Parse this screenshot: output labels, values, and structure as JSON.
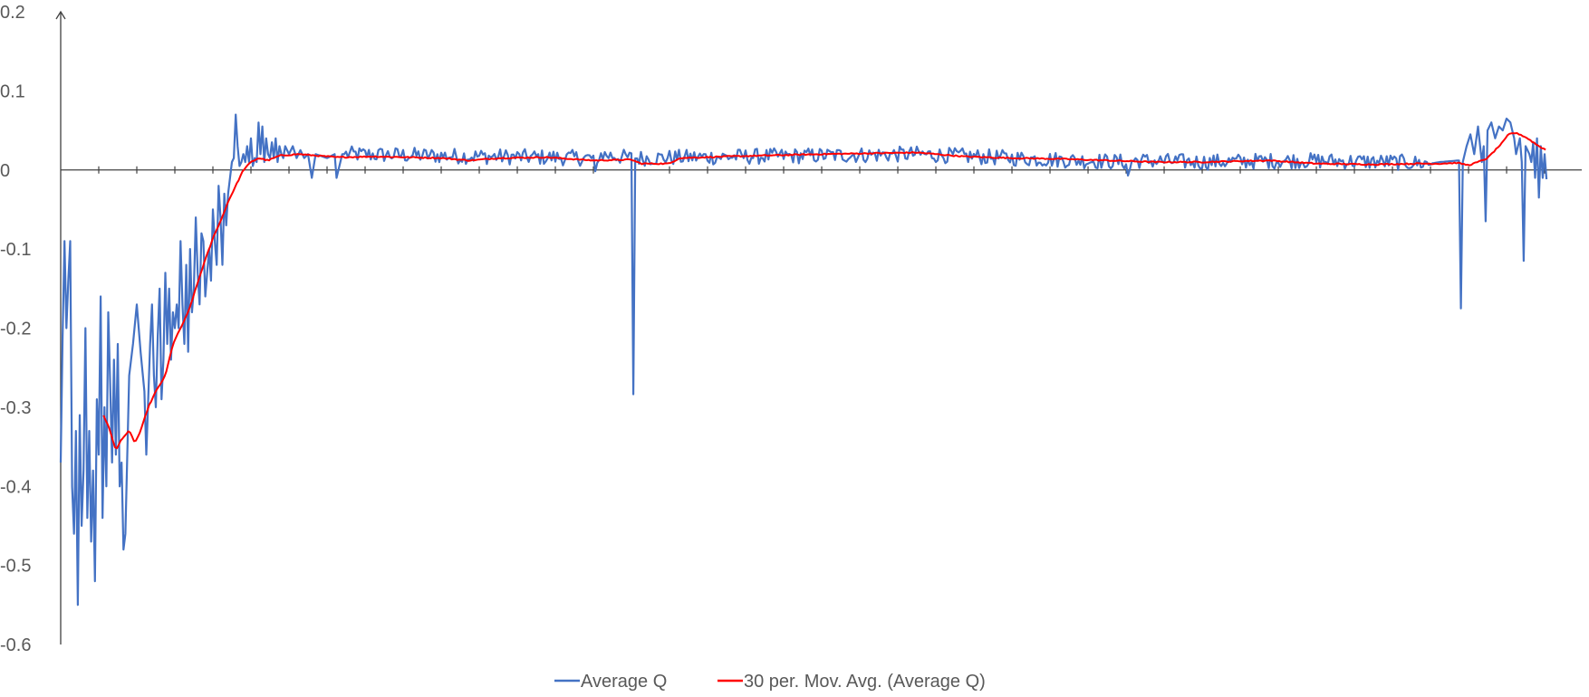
{
  "chart_data": {
    "type": "line",
    "title": "",
    "xlabel": "",
    "ylabel": "",
    "ylim": [
      -0.6,
      0.2
    ],
    "yticks": [
      0.2,
      0.1,
      0,
      -0.1,
      -0.2,
      -0.3,
      -0.4,
      -0.5,
      -0.6
    ],
    "ytick_labels": [
      "0.2",
      "0.1",
      "0",
      "-0.1",
      "-0.2",
      "-0.3",
      "-0.4",
      "-0.5",
      "-0.6"
    ],
    "x_count": 1600,
    "x_tick_interval": 40,
    "grid": false,
    "legend_position": "bottom",
    "series": [
      {
        "name": "Average Q",
        "color": "#4472C4",
        "keypoints": [
          [
            0,
            -0.37
          ],
          [
            2,
            -0.21
          ],
          [
            4,
            -0.09
          ],
          [
            6,
            -0.2
          ],
          [
            8,
            -0.14
          ],
          [
            10,
            -0.09
          ],
          [
            12,
            -0.4
          ],
          [
            14,
            -0.46
          ],
          [
            16,
            -0.33
          ],
          [
            18,
            -0.55
          ],
          [
            20,
            -0.31
          ],
          [
            22,
            -0.45
          ],
          [
            24,
            -0.38
          ],
          [
            26,
            -0.2
          ],
          [
            28,
            -0.44
          ],
          [
            30,
            -0.33
          ],
          [
            32,
            -0.47
          ],
          [
            34,
            -0.38
          ],
          [
            36,
            -0.52
          ],
          [
            38,
            -0.29
          ],
          [
            40,
            -0.36
          ],
          [
            42,
            -0.16
          ],
          [
            44,
            -0.44
          ],
          [
            46,
            -0.3
          ],
          [
            48,
            -0.4
          ],
          [
            50,
            -0.18
          ],
          [
            52,
            -0.27
          ],
          [
            54,
            -0.37
          ],
          [
            56,
            -0.24
          ],
          [
            58,
            -0.36
          ],
          [
            60,
            -0.22
          ],
          [
            62,
            -0.4
          ],
          [
            64,
            -0.37
          ],
          [
            66,
            -0.48
          ],
          [
            68,
            -0.46
          ],
          [
            72,
            -0.26
          ],
          [
            76,
            -0.22
          ],
          [
            80,
            -0.17
          ],
          [
            84,
            -0.23
          ],
          [
            88,
            -0.28
          ],
          [
            90,
            -0.36
          ],
          [
            94,
            -0.22
          ],
          [
            96,
            -0.17
          ],
          [
            98,
            -0.26
          ],
          [
            100,
            -0.3
          ],
          [
            102,
            -0.21
          ],
          [
            104,
            -0.15
          ],
          [
            106,
            -0.29
          ],
          [
            108,
            -0.24
          ],
          [
            110,
            -0.13
          ],
          [
            112,
            -0.22
          ],
          [
            114,
            -0.15
          ],
          [
            116,
            -0.24
          ],
          [
            118,
            -0.18
          ],
          [
            120,
            -0.2
          ],
          [
            122,
            -0.17
          ],
          [
            124,
            -0.2
          ],
          [
            126,
            -0.09
          ],
          [
            128,
            -0.17
          ],
          [
            130,
            -0.22
          ],
          [
            132,
            -0.12
          ],
          [
            134,
            -0.23
          ],
          [
            136,
            -0.1
          ],
          [
            138,
            -0.18
          ],
          [
            140,
            -0.15
          ],
          [
            142,
            -0.06
          ],
          [
            144,
            -0.13
          ],
          [
            146,
            -0.17
          ],
          [
            148,
            -0.08
          ],
          [
            150,
            -0.09
          ],
          [
            152,
            -0.16
          ],
          [
            156,
            -0.1
          ],
          [
            158,
            -0.14
          ],
          [
            160,
            -0.05
          ],
          [
            162,
            -0.09
          ],
          [
            164,
            -0.12
          ],
          [
            166,
            -0.02
          ],
          [
            168,
            -0.06
          ],
          [
            170,
            -0.12
          ],
          [
            172,
            -0.03
          ],
          [
            174,
            -0.07
          ],
          [
            176,
            -0.03
          ],
          [
            178,
            -0.01
          ],
          [
            180,
            0.01
          ],
          [
            182,
            0.015
          ],
          [
            184,
            0.07
          ],
          [
            186,
            0.03
          ],
          [
            188,
            0.005
          ],
          [
            190,
            0.01
          ],
          [
            192,
            0.02
          ],
          [
            194,
            0.01
          ],
          [
            196,
            0.03
          ],
          [
            198,
            0.01
          ],
          [
            200,
            0.04
          ],
          [
            202,
            0.005
          ],
          [
            204,
            0.015
          ],
          [
            206,
            0.01
          ],
          [
            208,
            0.06
          ],
          [
            210,
            0.02
          ],
          [
            212,
            0.055
          ],
          [
            214,
            0.01
          ],
          [
            216,
            0.04
          ],
          [
            218,
            0.02
          ],
          [
            220,
            0.015
          ],
          [
            222,
            0.035
          ],
          [
            224,
            0.015
          ],
          [
            226,
            0.04
          ],
          [
            228,
            0.01
          ],
          [
            230,
            0.03
          ],
          [
            232,
            0.02
          ],
          [
            234,
            0.015
          ],
          [
            236,
            0.03
          ],
          [
            240,
            0.02
          ],
          [
            244,
            0.03
          ],
          [
            248,
            0.015
          ],
          [
            252,
            0.025
          ],
          [
            256,
            0.015
          ],
          [
            260,
            0.02
          ],
          [
            264,
            -0.01
          ],
          [
            268,
            0.02
          ],
          [
            280,
            0.015
          ],
          [
            288,
            0.02
          ],
          [
            290,
            -0.01
          ],
          [
            296,
            0.02
          ],
          [
            560,
            0.015
          ],
          [
            562,
            -0.01
          ],
          [
            566,
            0.02
          ],
          [
            600,
            0.015
          ],
          [
            602,
            -0.28
          ],
          [
            604,
            0.015
          ],
          [
            900,
            0.02
          ],
          [
            1000,
            0.015
          ],
          [
            1120,
            0.01
          ],
          [
            1122,
            -0.01
          ],
          [
            1126,
            0.012
          ],
          [
            1200,
            0.01
          ],
          [
            1300,
            0.012
          ],
          [
            1400,
            0.01
          ],
          [
            1440,
            0.008
          ],
          [
            1450,
            0.01
          ],
          [
            1470,
            0.012
          ],
          [
            1472,
            -0.175
          ],
          [
            1474,
            0.01
          ],
          [
            1478,
            0.03
          ],
          [
            1482,
            0.045
          ],
          [
            1486,
            0.02
          ],
          [
            1490,
            0.055
          ],
          [
            1494,
            0.01
          ],
          [
            1496,
            0.03
          ],
          [
            1498,
            -0.065
          ],
          [
            1500,
            0.05
          ],
          [
            1504,
            0.06
          ],
          [
            1508,
            0.04
          ],
          [
            1512,
            0.055
          ],
          [
            1516,
            0.05
          ],
          [
            1520,
            0.065
          ],
          [
            1524,
            0.06
          ],
          [
            1528,
            0.04
          ],
          [
            1530,
            0.02
          ],
          [
            1534,
            0.04
          ],
          [
            1536,
            0.01
          ],
          [
            1538,
            -0.115
          ],
          [
            1540,
            0.03
          ],
          [
            1544,
            0.02
          ],
          [
            1546,
            0.01
          ],
          [
            1548,
            0.035
          ],
          [
            1550,
            -0.01
          ],
          [
            1552,
            0.04
          ],
          [
            1554,
            -0.035
          ],
          [
            1556,
            0.03
          ],
          [
            1558,
            -0.01
          ],
          [
            1560,
            0.02
          ],
          [
            1562,
            -0.01
          ]
        ]
      },
      {
        "name": "30 per. Mov. Avg. (Average Q)",
        "color": "#FF0000",
        "keypoints": [
          [
            45,
            -0.31
          ],
          [
            52,
            -0.33
          ],
          [
            58,
            -0.355
          ],
          [
            64,
            -0.34
          ],
          [
            72,
            -0.33
          ],
          [
            78,
            -0.345
          ],
          [
            84,
            -0.33
          ],
          [
            92,
            -0.3
          ],
          [
            100,
            -0.28
          ],
          [
            110,
            -0.26
          ],
          [
            118,
            -0.22
          ],
          [
            126,
            -0.2
          ],
          [
            134,
            -0.18
          ],
          [
            142,
            -0.15
          ],
          [
            150,
            -0.12
          ],
          [
            156,
            -0.1
          ],
          [
            162,
            -0.08
          ],
          [
            168,
            -0.065
          ],
          [
            176,
            -0.04
          ],
          [
            184,
            -0.02
          ],
          [
            192,
            0.0
          ],
          [
            200,
            0.01
          ],
          [
            208,
            0.015
          ],
          [
            218,
            0.012
          ],
          [
            230,
            0.018
          ],
          [
            250,
            0.02
          ],
          [
            270,
            0.018
          ],
          [
            290,
            0.016
          ],
          [
            330,
            0.017
          ],
          [
            400,
            0.015
          ],
          [
            430,
            0.012
          ],
          [
            460,
            0.015
          ],
          [
            510,
            0.016
          ],
          [
            560,
            0.012
          ],
          [
            600,
            0.013
          ],
          [
            610,
            0.008
          ],
          [
            640,
            0.008
          ],
          [
            650,
            0.015
          ],
          [
            700,
            0.017
          ],
          [
            800,
            0.02
          ],
          [
            900,
            0.022
          ],
          [
            950,
            0.017
          ],
          [
            1000,
            0.015
          ],
          [
            1050,
            0.014
          ],
          [
            1100,
            0.012
          ],
          [
            1150,
            0.01
          ],
          [
            1200,
            0.01
          ],
          [
            1270,
            0.012
          ],
          [
            1320,
            0.008
          ],
          [
            1380,
            0.007
          ],
          [
            1430,
            0.008
          ],
          [
            1450,
            0.008
          ],
          [
            1468,
            0.009
          ],
          [
            1480,
            0.006
          ],
          [
            1490,
            0.01
          ],
          [
            1500,
            0.015
          ],
          [
            1508,
            0.025
          ],
          [
            1516,
            0.035
          ],
          [
            1522,
            0.045
          ],
          [
            1528,
            0.047
          ],
          [
            1534,
            0.045
          ],
          [
            1542,
            0.04
          ],
          [
            1548,
            0.035
          ],
          [
            1554,
            0.03
          ],
          [
            1562,
            0.025
          ]
        ]
      }
    ]
  }
}
